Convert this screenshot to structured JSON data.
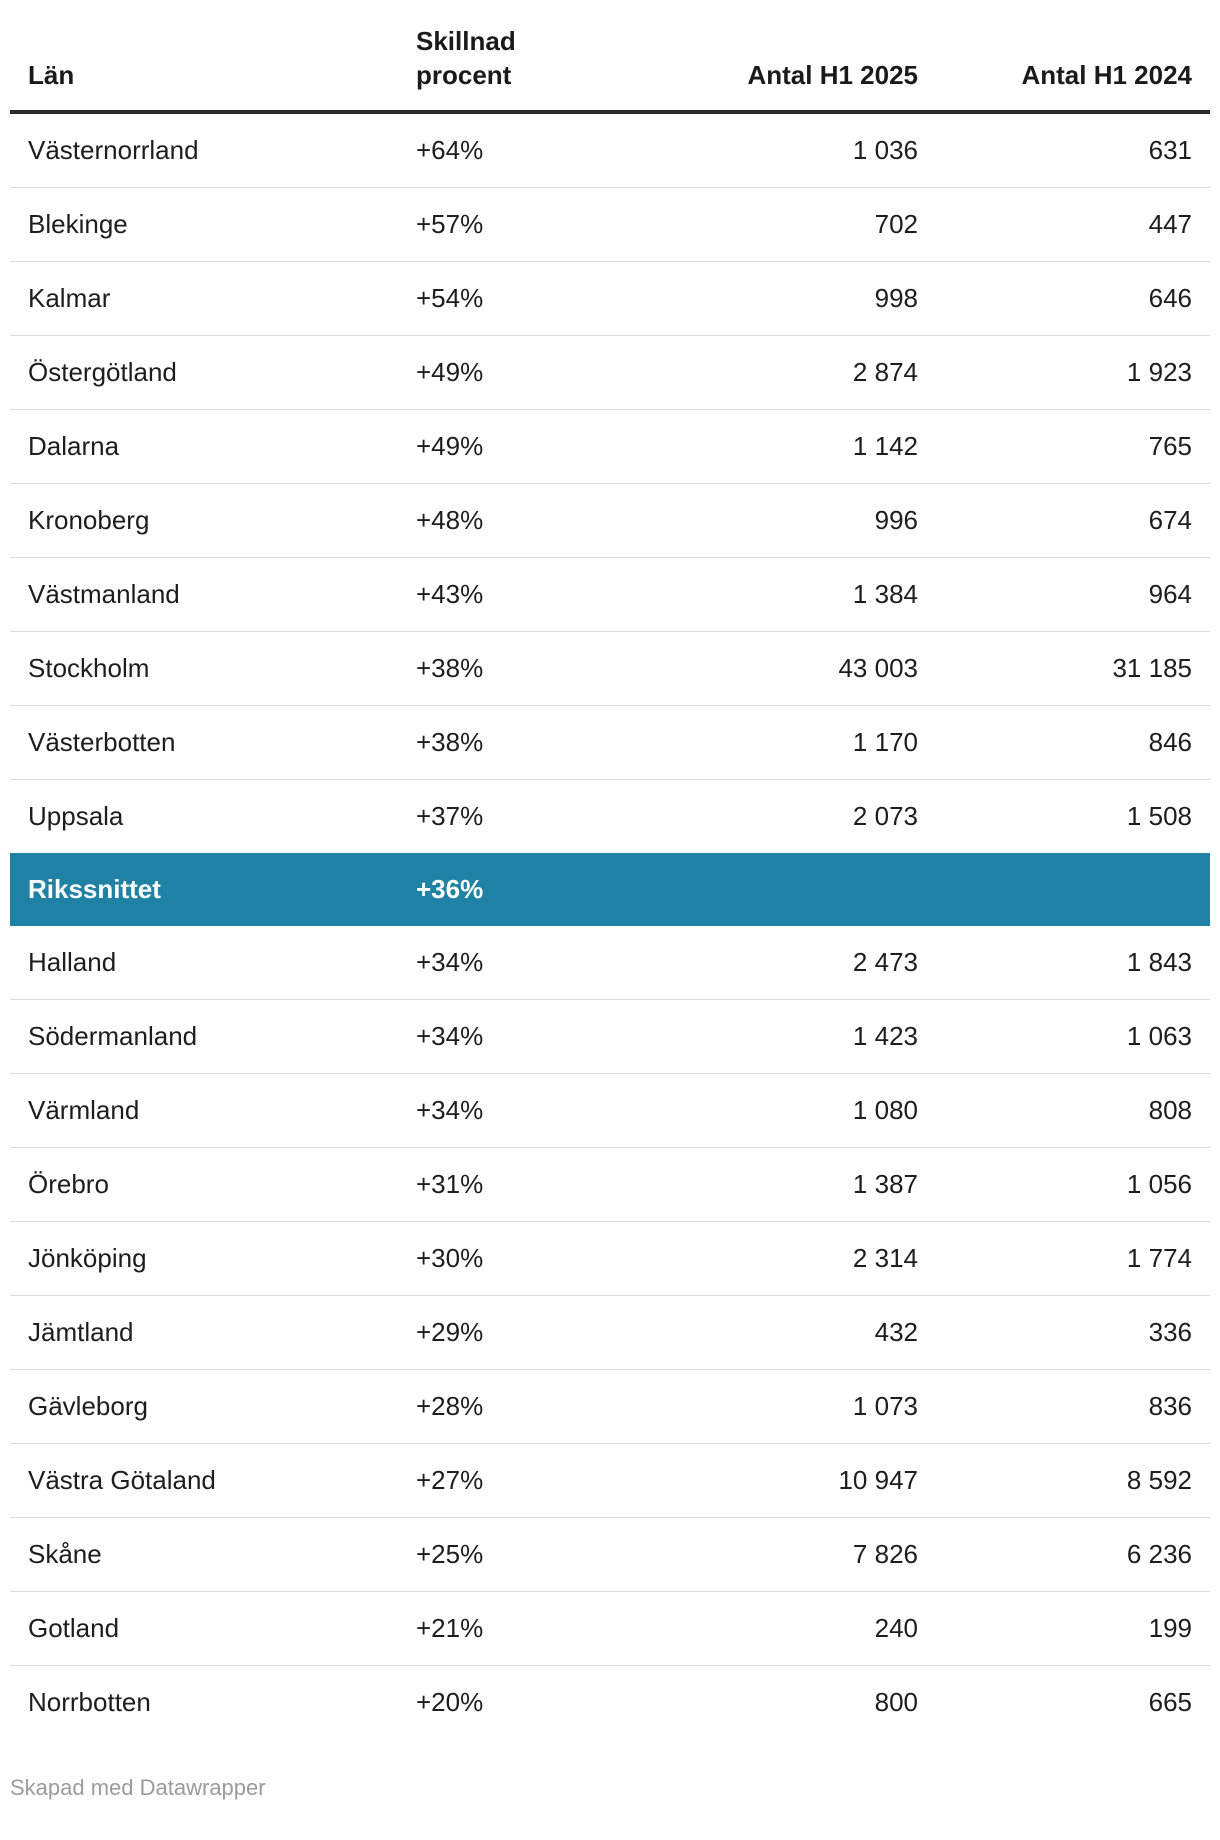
{
  "chart_data": {
    "type": "table",
    "title": "",
    "columns": [
      "Län",
      "Skillnad procent",
      "Antal H1 2025",
      "Antal H1 2024"
    ],
    "rows": [
      {
        "lan": "Västernorrland",
        "skillnad_procent": 64,
        "antal_h1_2025": 1036,
        "antal_h1_2024": 631
      },
      {
        "lan": "Blekinge",
        "skillnad_procent": 57,
        "antal_h1_2025": 702,
        "antal_h1_2024": 447
      },
      {
        "lan": "Kalmar",
        "skillnad_procent": 54,
        "antal_h1_2025": 998,
        "antal_h1_2024": 646
      },
      {
        "lan": "Östergötland",
        "skillnad_procent": 49,
        "antal_h1_2025": 2874,
        "antal_h1_2024": 1923
      },
      {
        "lan": "Dalarna",
        "skillnad_procent": 49,
        "antal_h1_2025": 1142,
        "antal_h1_2024": 765
      },
      {
        "lan": "Kronoberg",
        "skillnad_procent": 48,
        "antal_h1_2025": 996,
        "antal_h1_2024": 674
      },
      {
        "lan": "Västmanland",
        "skillnad_procent": 43,
        "antal_h1_2025": 1384,
        "antal_h1_2024": 964
      },
      {
        "lan": "Stockholm",
        "skillnad_procent": 38,
        "antal_h1_2025": 43003,
        "antal_h1_2024": 31185
      },
      {
        "lan": "Västerbotten",
        "skillnad_procent": 38,
        "antal_h1_2025": 1170,
        "antal_h1_2024": 846
      },
      {
        "lan": "Uppsala",
        "skillnad_procent": 37,
        "antal_h1_2025": 2073,
        "antal_h1_2024": 1508
      },
      {
        "lan": "Rikssnittet",
        "skillnad_procent": 36,
        "antal_h1_2025": null,
        "antal_h1_2024": null
      },
      {
        "lan": "Halland",
        "skillnad_procent": 34,
        "antal_h1_2025": 2473,
        "antal_h1_2024": 1843
      },
      {
        "lan": "Södermanland",
        "skillnad_procent": 34,
        "antal_h1_2025": 1423,
        "antal_h1_2024": 1063
      },
      {
        "lan": "Värmland",
        "skillnad_procent": 34,
        "antal_h1_2025": 1080,
        "antal_h1_2024": 808
      },
      {
        "lan": "Örebro",
        "skillnad_procent": 31,
        "antal_h1_2025": 1387,
        "antal_h1_2024": 1056
      },
      {
        "lan": "Jönköping",
        "skillnad_procent": 30,
        "antal_h1_2025": 2314,
        "antal_h1_2024": 1774
      },
      {
        "lan": "Jämtland",
        "skillnad_procent": 29,
        "antal_h1_2025": 432,
        "antal_h1_2024": 336
      },
      {
        "lan": "Gävleborg",
        "skillnad_procent": 28,
        "antal_h1_2025": 1073,
        "antal_h1_2024": 836
      },
      {
        "lan": "Västra Götaland",
        "skillnad_procent": 27,
        "antal_h1_2025": 10947,
        "antal_h1_2024": 8592
      },
      {
        "lan": "Skåne",
        "skillnad_procent": 25,
        "antal_h1_2025": 7826,
        "antal_h1_2024": 6236
      },
      {
        "lan": "Gotland",
        "skillnad_procent": 21,
        "antal_h1_2025": 240,
        "antal_h1_2024": 199
      },
      {
        "lan": "Norrbotten",
        "skillnad_procent": 20,
        "antal_h1_2025": 800,
        "antal_h1_2024": 665
      }
    ],
    "highlighted_row": "Rikssnittet",
    "layout_hints": {
      "header_rule": "thick dark",
      "row_separators": "light gray",
      "numeric_columns_right_aligned": true
    }
  },
  "table": {
    "headers": [
      {
        "label": "Län",
        "align": "left"
      },
      {
        "label": "Skillnad\nprocent",
        "align": "left"
      },
      {
        "label": "Antal H1 2025",
        "align": "right"
      },
      {
        "label": "Antal H1 2024",
        "align": "right"
      }
    ],
    "rows": [
      {
        "lan": "Västernorrland",
        "skillnad": "+64%",
        "h1_2025": "1 036",
        "h1_2024": "631",
        "highlight": false
      },
      {
        "lan": "Blekinge",
        "skillnad": "+57%",
        "h1_2025": "702",
        "h1_2024": "447",
        "highlight": false
      },
      {
        "lan": "Kalmar",
        "skillnad": "+54%",
        "h1_2025": "998",
        "h1_2024": "646",
        "highlight": false
      },
      {
        "lan": "Östergötland",
        "skillnad": "+49%",
        "h1_2025": "2 874",
        "h1_2024": "1 923",
        "highlight": false
      },
      {
        "lan": "Dalarna",
        "skillnad": "+49%",
        "h1_2025": "1 142",
        "h1_2024": "765",
        "highlight": false
      },
      {
        "lan": "Kronoberg",
        "skillnad": "+48%",
        "h1_2025": "996",
        "h1_2024": "674",
        "highlight": false
      },
      {
        "lan": "Västmanland",
        "skillnad": "+43%",
        "h1_2025": "1 384",
        "h1_2024": "964",
        "highlight": false
      },
      {
        "lan": "Stockholm",
        "skillnad": "+38%",
        "h1_2025": "43 003",
        "h1_2024": "31 185",
        "highlight": false
      },
      {
        "lan": "Västerbotten",
        "skillnad": "+38%",
        "h1_2025": "1 170",
        "h1_2024": "846",
        "highlight": false
      },
      {
        "lan": "Uppsala",
        "skillnad": "+37%",
        "h1_2025": "2 073",
        "h1_2024": "1 508",
        "highlight": false
      },
      {
        "lan": "Rikssnittet",
        "skillnad": "+36%",
        "h1_2025": "",
        "h1_2024": "",
        "highlight": true
      },
      {
        "lan": "Halland",
        "skillnad": "+34%",
        "h1_2025": "2 473",
        "h1_2024": "1 843",
        "highlight": false
      },
      {
        "lan": "Södermanland",
        "skillnad": "+34%",
        "h1_2025": "1 423",
        "h1_2024": "1 063",
        "highlight": false
      },
      {
        "lan": "Värmland",
        "skillnad": "+34%",
        "h1_2025": "1 080",
        "h1_2024": "808",
        "highlight": false
      },
      {
        "lan": "Örebro",
        "skillnad": "+31%",
        "h1_2025": "1 387",
        "h1_2024": "1 056",
        "highlight": false
      },
      {
        "lan": "Jönköping",
        "skillnad": "+30%",
        "h1_2025": "2 314",
        "h1_2024": "1 774",
        "highlight": false
      },
      {
        "lan": "Jämtland",
        "skillnad": "+29%",
        "h1_2025": "432",
        "h1_2024": "336",
        "highlight": false
      },
      {
        "lan": "Gävleborg",
        "skillnad": "+28%",
        "h1_2025": "1 073",
        "h1_2024": "836",
        "highlight": false
      },
      {
        "lan": "Västra Götaland",
        "skillnad": "+27%",
        "h1_2025": "10 947",
        "h1_2024": "8 592",
        "highlight": false
      },
      {
        "lan": "Skåne",
        "skillnad": "+25%",
        "h1_2025": "7 826",
        "h1_2024": "6 236",
        "highlight": false
      },
      {
        "lan": "Gotland",
        "skillnad": "+21%",
        "h1_2025": "240",
        "h1_2024": "199",
        "highlight": false
      },
      {
        "lan": "Norrbotten",
        "skillnad": "+20%",
        "h1_2025": "800",
        "h1_2024": "665",
        "highlight": false
      }
    ]
  },
  "footer": {
    "attribution": "Skapad med Datawrapper"
  },
  "colors": {
    "highlight_bg": "#1f81a3",
    "highlight_text": "#ffffff",
    "header_rule": "#2b2b2b",
    "row_separator": "#dcdcdc",
    "body_text": "#1d1d1d",
    "footer_text": "#9b9b9b"
  }
}
